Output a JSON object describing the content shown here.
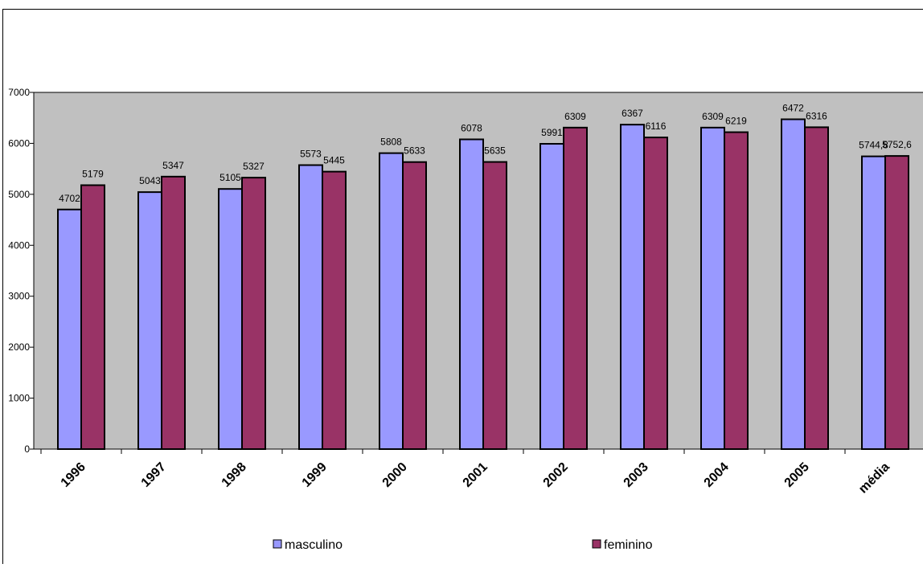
{
  "chart_data": {
    "type": "bar",
    "categories": [
      "1996",
      "1997",
      "1998",
      "1999",
      "2000",
      "2001",
      "2002",
      "2003",
      "2004",
      "2005",
      "média"
    ],
    "series": [
      {
        "name": "masculino",
        "color": "#9999ff",
        "values": [
          4702,
          5043,
          5105,
          5573,
          5808,
          6078,
          5991,
          6367,
          6309,
          6472,
          5744.8
        ],
        "labels": [
          "4702",
          "5043",
          "5105",
          "5573",
          "5808",
          "6078",
          "5991",
          "6367",
          "6309",
          "6472",
          "5744,8"
        ]
      },
      {
        "name": "feminino",
        "color": "#993366",
        "values": [
          5179,
          5347,
          5327,
          5445,
          5633,
          5635,
          6309,
          6116,
          6219,
          6316,
          5752.6
        ],
        "labels": [
          "5179",
          "5347",
          "5327",
          "5445",
          "5633",
          "5635",
          "6309",
          "6116",
          "6219",
          "6316",
          "5752,6"
        ]
      }
    ],
    "ylim": [
      0,
      7000
    ],
    "yticks": [
      "0",
      "1000",
      "2000",
      "3000",
      "4000",
      "5000",
      "6000",
      "7000"
    ],
    "plot_background": "#c0c0c0",
    "grid": false,
    "legend_position": "bottom",
    "title": "",
    "xlabel": "",
    "ylabel": ""
  }
}
